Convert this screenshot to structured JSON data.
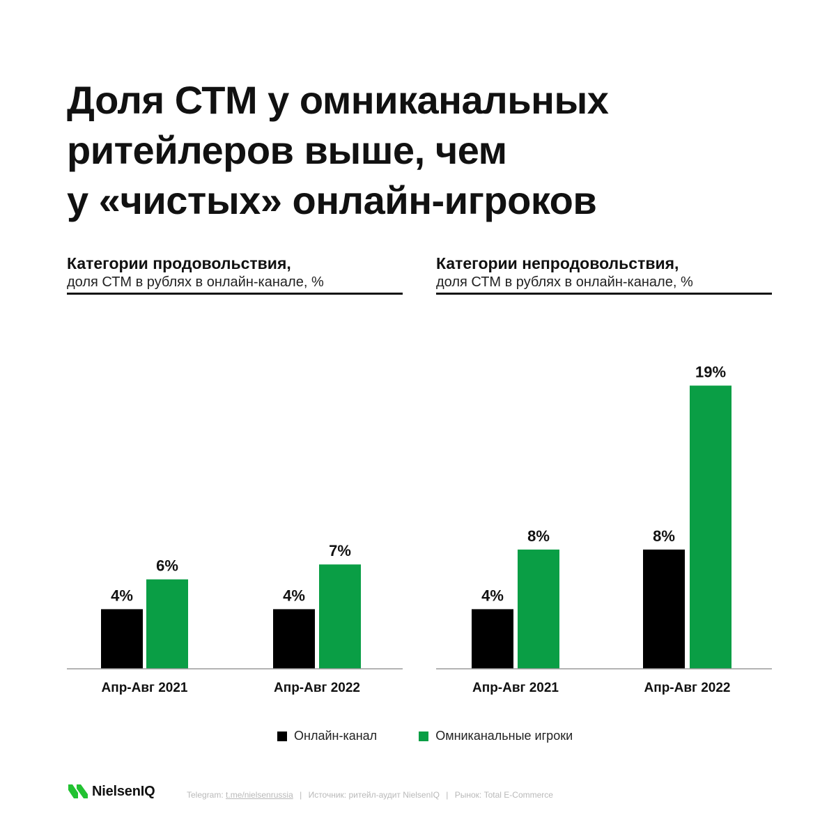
{
  "title_lines": [
    "Доля СТМ у омниканальных",
    "ритейлеров выше, чем",
    "у «чистых» онлайн-игроков"
  ],
  "panels": [
    {
      "title": "Категории продовольствия,",
      "subtitle": "доля СТМ в рублях в онлайн-канале, %"
    },
    {
      "title": "Категории непродовольствия,",
      "subtitle": "доля СТМ в рублях в онлайн-канале, %"
    }
  ],
  "colors": {
    "online": "#000000",
    "omni": "#0a9e45"
  },
  "chart_data": [
    {
      "type": "bar",
      "title": "Категории продовольствия,",
      "subtitle": "доля СТМ в рублях в онлайн-канале, %",
      "categories": [
        "Апр-Авг 2021",
        "Апр-Авг 2022"
      ],
      "series": [
        {
          "name": "Онлайн-канал",
          "values": [
            4,
            4
          ],
          "labels": [
            "4%",
            "4%"
          ]
        },
        {
          "name": "Омниканальные игроки",
          "values": [
            6,
            7
          ],
          "labels": [
            "6%",
            "7%"
          ]
        }
      ],
      "ylim": [
        0,
        21.5
      ]
    },
    {
      "type": "bar",
      "title": "Категории непродовольствия,",
      "subtitle": "доля СТМ в рублях в онлайн-канале, %",
      "categories": [
        "Апр-Авг 2021",
        "Апр-Авг 2022"
      ],
      "series": [
        {
          "name": "Онлайн-канал",
          "values": [
            4,
            8
          ],
          "labels": [
            "4%",
            "8%"
          ]
        },
        {
          "name": "Омниканальные игроки",
          "values": [
            8,
            19
          ],
          "labels": [
            "8%",
            "19%"
          ]
        }
      ],
      "ylim": [
        0,
        21.5
      ]
    }
  ],
  "legend": [
    {
      "label": "Онлайн-канал",
      "color_key": "online"
    },
    {
      "label": "Омниканальные игроки",
      "color_key": "omni"
    }
  ],
  "logo": {
    "text": "NielsenIQ"
  },
  "footer": {
    "telegram_label": "Telegram:",
    "telegram_link": "t.me/nielsenrussia",
    "separator": "|",
    "source": "Источник: ритейл-аудит NielsenIQ",
    "market": "Рынок: Total E-Commerce"
  }
}
